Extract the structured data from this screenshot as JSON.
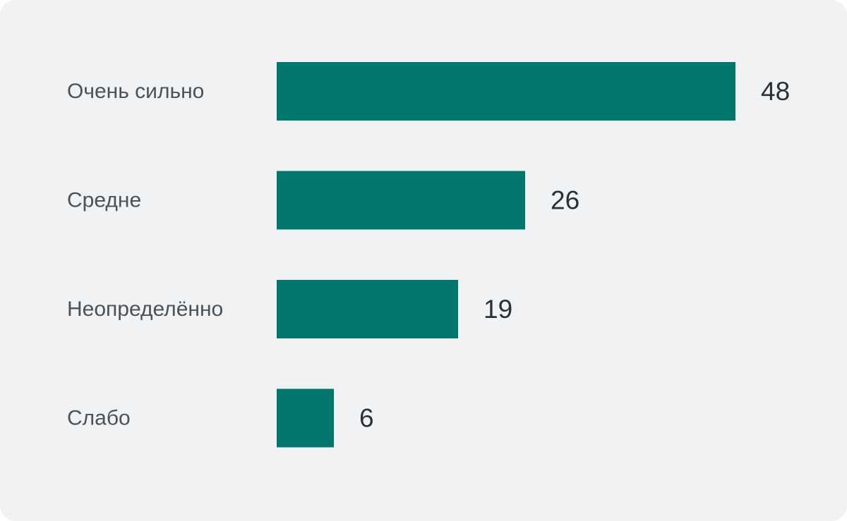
{
  "chart_data": {
    "type": "bar",
    "orientation": "horizontal",
    "categories": [
      "Очень сильно",
      "Средне",
      "Неопределённо",
      "Слабо"
    ],
    "values": [
      48,
      26,
      19,
      6
    ],
    "data_labels": [
      "48",
      "26",
      "19",
      "6"
    ],
    "title": "",
    "xlabel": "",
    "ylabel": "",
    "xlim": [
      0,
      48
    ],
    "grid": false,
    "legend": "none",
    "colors": {
      "bar": "#02776d",
      "background": "#f1f2f4",
      "category_text": "#4a5257",
      "value_text": "#273238"
    }
  }
}
